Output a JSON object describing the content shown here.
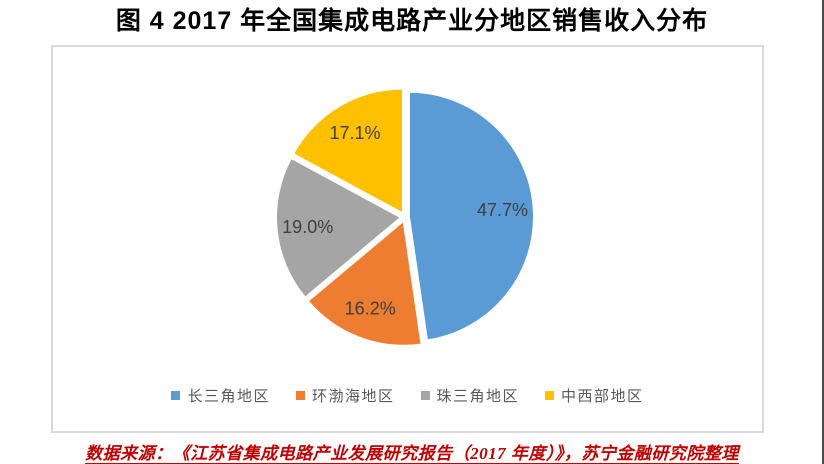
{
  "chart_data": {
    "type": "pie",
    "title": "图 4  2017 年全国集成电路产业分地区销售收入分布",
    "categories": [
      "长三角地区",
      "环渤海地区",
      "珠三角地区",
      "中西部地区"
    ],
    "values": [
      47.7,
      16.2,
      19.0,
      17.1
    ],
    "labels": [
      "47.7%",
      "16.2%",
      "19.0%",
      "17.1%"
    ],
    "colors": [
      "#5B9BD5",
      "#ED7D31",
      "#A5A5A5",
      "#FFC000"
    ],
    "start_angle_deg": 0,
    "direction": "clockwise",
    "legend_position": "bottom",
    "label_color": "#404040",
    "plot_border_color": "#D9D9D9"
  },
  "footer": {
    "source_text": "数据来源：《江苏省集成电路产业发展研究报告（2017 年度）》，苏宁金融研究院整理",
    "color": "#C00000"
  }
}
